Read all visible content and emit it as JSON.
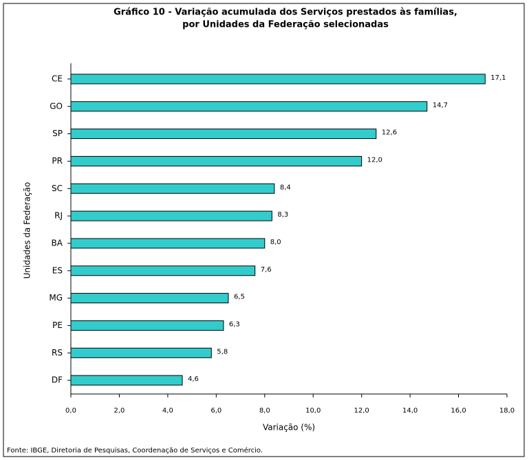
{
  "chart_data": {
    "type": "bar",
    "orientation": "horizontal",
    "title": [
      "Gráfico 10 - Variação acumulada dos Serviços prestados às famílias,",
      "por Unidades da Federação selecionadas"
    ],
    "xlabel": "Variação (%)",
    "ylabel": "Unidades da Federação",
    "source": "Fonte: IBGE, Diretoria de Pesquisas, Coordenação de Serviços e Comércio.",
    "categories": [
      "CE",
      "GO",
      "SP",
      "PR",
      "SC",
      "RJ",
      "BA",
      "ES",
      "MG",
      "PE",
      "RS",
      "DF"
    ],
    "values": [
      17.1,
      14.7,
      12.6,
      12.0,
      8.4,
      8.3,
      8.0,
      7.6,
      6.5,
      6.3,
      5.8,
      4.6
    ],
    "value_labels": [
      "17,1",
      "14,7",
      "12,6",
      "12,0",
      "8,4",
      "8,3",
      "8,0",
      "7,6",
      "6,5",
      "6,3",
      "5,8",
      "4,6"
    ],
    "color": "#33cccc",
    "xlim": [
      0,
      18
    ],
    "xticks": [
      {
        "value": 0,
        "label": "0,0"
      },
      {
        "value": 2,
        "label": "2,0"
      },
      {
        "value": 4,
        "label": "4,0"
      },
      {
        "value": 6,
        "label": "6,0"
      },
      {
        "value": 8,
        "label": "8,0"
      },
      {
        "value": 10,
        "label": "10,0"
      },
      {
        "value": 12,
        "label": "12,0"
      },
      {
        "value": 14,
        "label": "14,0"
      },
      {
        "value": 16,
        "label": "16,0"
      },
      {
        "value": 18,
        "label": "18,0"
      }
    ],
    "grid": false
  }
}
